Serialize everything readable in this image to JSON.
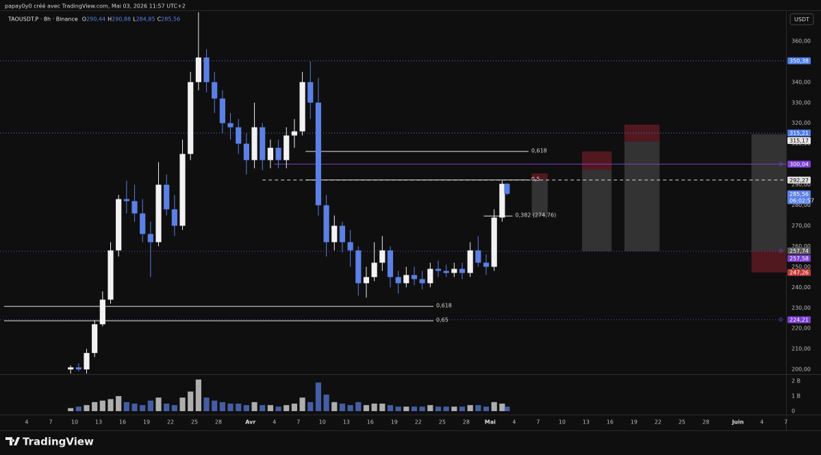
{
  "header": {
    "text": "papay0y0 créé avec TradingView.com, Mai 03, 2026 11:57 UTC+2"
  },
  "brand": "TradingView",
  "currency_button": "USDT",
  "chart_data": {
    "type": "candlestick",
    "title": "TAOUSDT.P · 8h · Binance",
    "legend": [
      {
        "key": "O",
        "text": "290,44"
      },
      {
        "key": "H",
        "text": "290,88"
      },
      {
        "key": "L",
        "text": "284,85"
      },
      {
        "key": "C",
        "text": "285,56"
      }
    ],
    "up_color": "#f2f2f2",
    "down_color": "#5b80e6",
    "grid": false,
    "xlim": [
      -0.34,
      98.03
    ],
    "xticks": [
      {
        "value": 3,
        "label": "4"
      },
      {
        "value": 6,
        "label": "7"
      },
      {
        "value": 9,
        "label": "10"
      },
      {
        "value": 12,
        "label": "13"
      },
      {
        "value": 15,
        "label": "16"
      },
      {
        "value": 18,
        "label": "19"
      },
      {
        "value": 21,
        "label": "22"
      },
      {
        "value": 24,
        "label": "25"
      },
      {
        "value": 27,
        "label": "28"
      },
      {
        "value": 31,
        "label": "Avr"
      },
      {
        "value": 34,
        "label": "4"
      },
      {
        "value": 37,
        "label": "7"
      },
      {
        "value": 40,
        "label": "10"
      },
      {
        "value": 43,
        "label": "13"
      },
      {
        "value": 46,
        "label": "16"
      },
      {
        "value": 49,
        "label": "19"
      },
      {
        "value": 52,
        "label": "22"
      },
      {
        "value": 55,
        "label": "25"
      },
      {
        "value": 58,
        "label": "28"
      },
      {
        "value": 61,
        "label": "Mai"
      },
      {
        "value": 64,
        "label": "4"
      },
      {
        "value": 67,
        "label": "7"
      },
      {
        "value": 70,
        "label": "10"
      },
      {
        "value": 73,
        "label": "13"
      },
      {
        "value": 76,
        "label": "16"
      },
      {
        "value": 79,
        "label": "19"
      },
      {
        "value": 82,
        "label": "22"
      },
      {
        "value": 85,
        "label": "25"
      },
      {
        "value": 88,
        "label": "28"
      },
      {
        "value": 92,
        "label": "Juin"
      },
      {
        "value": 95,
        "label": "4"
      },
      {
        "value": 98,
        "label": "7"
      }
    ],
    "ylim": [
      197.7,
      375
    ],
    "yticks": [
      {
        "value": 200,
        "label": "200,00"
      },
      {
        "value": 210,
        "label": "210,00"
      },
      {
        "value": 220,
        "label": "220,00"
      },
      {
        "value": 230,
        "label": "230,00"
      },
      {
        "value": 240,
        "label": "240,00"
      },
      {
        "value": 250,
        "label": "250,00"
      },
      {
        "value": 260,
        "label": "260,00"
      },
      {
        "value": 270,
        "label": "270,00"
      },
      {
        "value": 280,
        "label": "280,00"
      },
      {
        "value": 290,
        "label": "290,00"
      },
      {
        "value": 300,
        "label": "300,00"
      },
      {
        "value": 310,
        "label": "310,00"
      },
      {
        "value": 320,
        "label": "320,00"
      },
      {
        "value": 330,
        "label": "330,00"
      },
      {
        "value": 340,
        "label": "340,00"
      },
      {
        "value": 350,
        "label": "350,00"
      },
      {
        "value": 360,
        "label": "360,00"
      }
    ],
    "volume_ylim": [
      0,
      2.32
    ],
    "volume_yticks": [
      0,
      {
        "value": 1,
        "label": "1 B"
      },
      {
        "value": 2,
        "label": "2 B"
      }
    ],
    "x": [
      8.5,
      9.5,
      10.5,
      11.5,
      12.5,
      13.5,
      14.5,
      15.5,
      16.5,
      17.5,
      18.5,
      19.5,
      20.5,
      21.5,
      22.5,
      23.5,
      24.5,
      25.5,
      26.5,
      27.5,
      28.5,
      29.5,
      30.5,
      31.5,
      32.5,
      33.5,
      34.5,
      35.5,
      36.5,
      37.5,
      38.5,
      39.5,
      40.5,
      41.5,
      42.5,
      43.5,
      44.5,
      45.5,
      46.5,
      47.5,
      48.5,
      49.5,
      50.5,
      51.5,
      52.5,
      53.5,
      54.5,
      55.5,
      56.5,
      57.5,
      58.5,
      59.5,
      60.5,
      61.5,
      62.5,
      63.1
    ],
    "series": [
      {
        "open": [
          200,
          201,
          200,
          208,
          222,
          234,
          258,
          283,
          282,
          276,
          266,
          262,
          290,
          278,
          270,
          305,
          340,
          352,
          340,
          332,
          320,
          318,
          310,
          302,
          318,
          302,
          308,
          302,
          314,
          316,
          340,
          330,
          280,
          262,
          270,
          262,
          258,
          242,
          245,
          252,
          258,
          245,
          242,
          246,
          244,
          242,
          249,
          248,
          247,
          249,
          247,
          258,
          252,
          250,
          274,
          290.44
        ],
        "high": [
          202,
          203,
          210,
          224,
          238,
          262,
          285,
          292,
          290,
          283,
          272,
          301,
          295,
          285,
          312,
          345,
          374,
          356,
          345,
          336,
          325,
          322,
          315,
          330,
          320,
          312,
          312,
          318,
          322,
          345,
          350,
          342,
          285,
          275,
          272,
          268,
          260,
          250,
          262,
          265,
          260,
          248,
          250,
          250,
          248,
          252,
          253,
          251,
          252,
          252,
          262,
          265,
          256,
          278,
          292,
          290.88
        ],
        "low": [
          198,
          199,
          198,
          206,
          221,
          232,
          255,
          276,
          272,
          262,
          245,
          260,
          275,
          265,
          268,
          302,
          336,
          335,
          325,
          315,
          312,
          305,
          295,
          298,
          297,
          298,
          298,
          298,
          308,
          314,
          322,
          275,
          255,
          258,
          257,
          250,
          236,
          235,
          243,
          248,
          240,
          237,
          240,
          241,
          239,
          240,
          245,
          245,
          245,
          244,
          245,
          250,
          246,
          248,
          272,
          284.85
        ],
        "close": [
          201,
          200,
          208,
          222,
          234,
          258,
          283,
          282,
          276,
          266,
          262,
          290,
          278,
          270,
          305,
          340,
          352,
          340,
          332,
          320,
          318,
          310,
          302,
          318,
          302,
          308,
          302,
          314,
          316,
          340,
          330,
          280,
          262,
          270,
          262,
          258,
          242,
          245,
          252,
          258,
          245,
          242,
          246,
          244,
          242,
          249,
          248,
          247,
          249,
          247,
          258,
          252,
          250,
          274,
          290.44,
          285.56
        ],
        "volume": [
          0.2,
          0.3,
          0.4,
          0.6,
          0.7,
          0.8,
          1.0,
          0.6,
          0.5,
          0.4,
          0.7,
          0.9,
          0.5,
          0.4,
          0.9,
          1.3,
          2.1,
          0.9,
          0.7,
          0.6,
          0.5,
          0.5,
          0.4,
          0.6,
          0.4,
          0.4,
          0.3,
          0.4,
          0.5,
          0.9,
          0.6,
          1.9,
          1.1,
          0.6,
          0.5,
          0.4,
          0.6,
          0.4,
          0.5,
          0.5,
          0.4,
          0.3,
          0.3,
          0.3,
          0.3,
          0.4,
          0.3,
          0.3,
          0.3,
          0.3,
          0.4,
          0.4,
          0.3,
          0.6,
          0.5,
          0.3
        ]
      }
    ],
    "price_lines": [
      {
        "value": 350.38,
        "label": "350,38",
        "color": "#4f7de8",
        "style": "dotted",
        "from": -0.34
      },
      {
        "value": 315.21,
        "label": "315,21",
        "color": "#4f7de8",
        "style": "dotted",
        "from": -0.34
      },
      {
        "value": 315.17,
        "label": "315,17",
        "color": "#e6e6e6",
        "style": "none"
      },
      {
        "value": 300.04,
        "label": "300,04",
        "color": "#7b3fd0",
        "style": "solid",
        "from": 34,
        "tag": "0"
      },
      {
        "value": 292.27,
        "label": "292,27",
        "color": "#dddddd",
        "style": "dashed",
        "from": 32.5
      },
      {
        "value": 257.74,
        "label": "257,74",
        "color": "#5a5a5a",
        "style": "none"
      },
      {
        "value": 257.58,
        "label": "257,58",
        "color": "#7b3fd0",
        "style": "dotted",
        "from": -0.34,
        "tag": "0"
      },
      {
        "value": 247.26,
        "label": "247,26",
        "color": "#c23b3b",
        "style": "none"
      },
      {
        "value": 224.21,
        "label": "224,21",
        "color": "#7b3fd0",
        "style": "dotted",
        "from": -0.34,
        "tag": "0"
      }
    ],
    "current_price": {
      "value": 285.56,
      "label": "285,56",
      "countdown": "06:02:57",
      "color": "#5b80e6"
    },
    "fib_lines": [
      {
        "label": "0,618",
        "value": 306.2,
        "x": [
          37.9,
          65.8
        ]
      },
      {
        "label": "0,5",
        "value": 292.3,
        "x": [
          37.9,
          65.8
        ]
      },
      {
        "label": "0,382 (274,76)",
        "value": 274.76,
        "x": [
          60.2,
          63.8
        ]
      },
      {
        "label": "0,618",
        "value": 230.7,
        "x": [
          0.17,
          53.9
        ]
      },
      {
        "label": "0,65",
        "value": 223.7,
        "x": [
          0.17,
          53.9
        ]
      }
    ],
    "risk_color": "rgba(125,32,42,0.6)",
    "target_color": "rgba(95,95,95,0.45)",
    "positions": [
      {
        "x": [
          66.2,
          68.2
        ],
        "risk": [
          295.5,
          292.3
        ],
        "target": [
          292.3,
          274.8
        ]
      },
      {
        "x": [
          72.5,
          76.2
        ],
        "risk": [
          306.2,
          297.3
        ],
        "target": [
          297.3,
          257.6
        ]
      },
      {
        "x": [
          77.8,
          82.2
        ],
        "risk": [
          319.3,
          311
        ],
        "target": [
          311,
          257.6
        ]
      },
      {
        "x": [
          93.7,
          98.03
        ],
        "target": [
          314.6,
          257.6
        ],
        "risk": [
          257.6,
          247.26
        ]
      }
    ]
  }
}
